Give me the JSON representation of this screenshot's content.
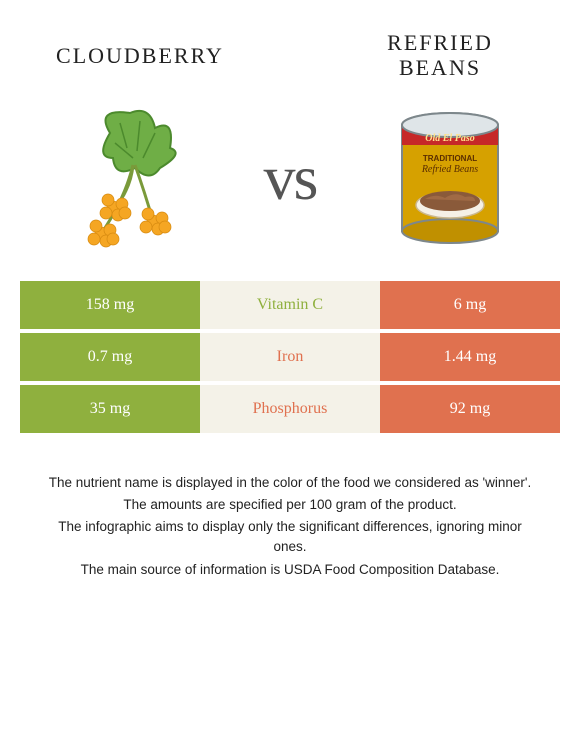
{
  "title_left": "Cloudberry",
  "title_right_line1": "Refried",
  "title_right_line2": "beans",
  "vs_label": "vs",
  "colors": {
    "left_bar": "#8fb03e",
    "mid_bg": "#f4f2e8",
    "right_bar": "#e0714f",
    "left_text": "#8fb03e",
    "right_text": "#e0714f"
  },
  "rows": [
    {
      "left": "158 mg",
      "label": "Vitamin C",
      "right": "6 mg",
      "label_color": "#8fb03e"
    },
    {
      "left": "0.7 mg",
      "label": "Iron",
      "right": "1.44 mg",
      "label_color": "#e0714f"
    },
    {
      "left": "35 mg",
      "label": "Phosphorus",
      "right": "92 mg",
      "label_color": "#e0714f"
    }
  ],
  "footnotes": [
    "The nutrient name is displayed in the color of the food we considered as 'winner'.",
    "The amounts are specified per 100 gram of the product.",
    "The infographic aims to display only the significant differences, ignoring minor ones.",
    "The main source of information is USDA Food Composition Database."
  ]
}
